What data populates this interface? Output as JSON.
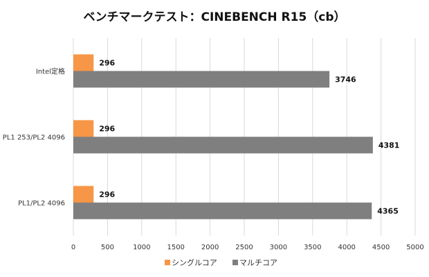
{
  "chart_data": {
    "type": "bar",
    "orientation": "horizontal",
    "title": "ベンチマークテスト：CINEBENCH R15（cb）",
    "categories": [
      "Intel定格",
      "PL1 253/PL2 4096",
      "PL1/PL2 4096"
    ],
    "series": [
      {
        "name": "シングルコア",
        "color": "#f79646",
        "values": [
          296,
          296,
          296
        ]
      },
      {
        "name": "マルチコア",
        "color": "#7f7f7f",
        "values": [
          3746,
          4381,
          4365
        ]
      }
    ],
    "xlim": [
      0,
      5000
    ],
    "xticks": [
      0,
      500,
      1000,
      1500,
      2000,
      2500,
      3000,
      3500,
      4000,
      4500,
      5000
    ],
    "grid": "vertical",
    "legend": "bottom"
  }
}
